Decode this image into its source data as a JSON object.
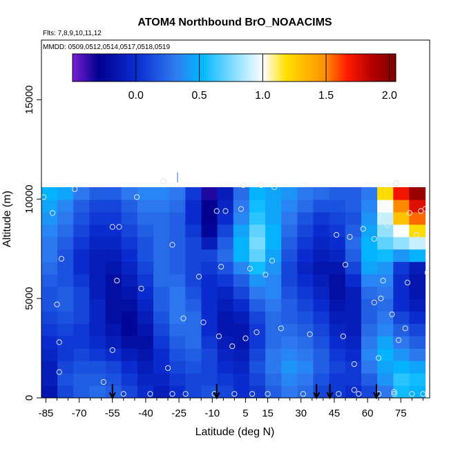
{
  "chart_data": {
    "type": "heatmap",
    "title": "ATOM4 Northbound BrO_NOAACIMS",
    "flights_label": "Flts: 7,8,9,10,11,12",
    "dates_label": "MMDD: 0509,0512,0514,0517,0518,0519",
    "xlabel": "Latitude (deg N)",
    "ylabel": "Altitude (m)",
    "xlim": [
      -87,
      88
    ],
    "ylim": [
      0,
      18000
    ],
    "x_ticks": [
      -85,
      -70,
      -55,
      -40,
      -25,
      -10,
      5,
      15,
      30,
      45,
      60,
      75
    ],
    "x_tick_labels": [
      "-85",
      "-70",
      "-55",
      "-40",
      "-25",
      "-10",
      "5",
      "15",
      "30",
      "45",
      "60",
      "75"
    ],
    "y_ticks": [
      0,
      5000,
      10000,
      15000
    ],
    "y_tick_labels": [
      "0",
      "5000",
      "10000",
      "15000"
    ],
    "colorbar": {
      "range": [
        -0.5,
        2.05
      ],
      "ticks": [
        0.0,
        0.5,
        1.0,
        1.5,
        2.0
      ],
      "tick_labels": [
        "0.0",
        "0.5",
        "1.0",
        "1.5",
        "2.0"
      ]
    },
    "colorscale": [
      "#7a1fd6",
      "#00008f",
      "#0a2ed0",
      "#2f7cf0",
      "#00b8ff",
      "#ffffff",
      "#ffe000",
      "#ff9000",
      "#ff1a00",
      "#b00000",
      "#800000"
    ],
    "cell_values_colorbar_units": [
      [
        -0.15,
        0.1,
        0.2,
        0.25,
        0.2,
        0.1,
        0.0,
        -0.1,
        0.0,
        0.1,
        0.15,
        0.1,
        0.0,
        0.05,
        0.2,
        0.3,
        0.25,
        0.1,
        0.05,
        0.0,
        0.1,
        0.3,
        0.55,
        0.5
      ],
      [
        -0.1,
        0.15,
        0.2,
        0.2,
        0.15,
        0.05,
        -0.05,
        -0.05,
        0.05,
        0.1,
        0.1,
        0.05,
        0.0,
        0.1,
        0.25,
        0.35,
        0.3,
        0.15,
        0.05,
        0.05,
        0.2,
        0.4,
        0.6,
        0.55
      ],
      [
        -0.1,
        0.1,
        0.15,
        0.15,
        0.1,
        0.0,
        -0.1,
        0.0,
        0.1,
        0.15,
        0.1,
        0.0,
        -0.05,
        0.15,
        0.3,
        0.4,
        0.35,
        0.2,
        0.1,
        0.05,
        0.3,
        0.45,
        0.5,
        0.45
      ],
      [
        -0.05,
        0.05,
        0.1,
        0.05,
        0.0,
        -0.1,
        -0.15,
        0.0,
        0.15,
        0.2,
        0.1,
        -0.05,
        -0.1,
        0.1,
        0.3,
        0.35,
        0.3,
        0.2,
        0.05,
        0.0,
        0.35,
        0.5,
        0.4,
        0.3
      ],
      [
        0.0,
        0.05,
        0.05,
        0.0,
        -0.1,
        -0.2,
        -0.2,
        0.05,
        0.2,
        0.25,
        0.05,
        -0.1,
        -0.15,
        0.05,
        0.25,
        0.3,
        0.25,
        0.15,
        0.0,
        -0.05,
        0.3,
        0.45,
        0.3,
        0.2
      ],
      [
        0.05,
        0.1,
        0.05,
        -0.05,
        -0.15,
        -0.25,
        -0.15,
        0.1,
        0.25,
        0.25,
        0.0,
        -0.15,
        -0.15,
        0.05,
        0.25,
        0.25,
        0.2,
        0.1,
        -0.05,
        -0.1,
        0.25,
        0.35,
        0.2,
        0.1
      ],
      [
        0.1,
        0.15,
        0.1,
        -0.05,
        -0.2,
        -0.25,
        -0.1,
        0.15,
        0.3,
        0.25,
        0.0,
        -0.15,
        -0.1,
        0.1,
        0.25,
        0.2,
        0.15,
        0.05,
        -0.1,
        -0.1,
        0.2,
        0.3,
        0.1,
        0.0
      ],
      [
        0.15,
        0.2,
        0.1,
        -0.05,
        -0.2,
        -0.2,
        -0.05,
        0.2,
        0.3,
        0.2,
        0.0,
        -0.1,
        0.0,
        0.2,
        0.3,
        0.2,
        0.1,
        0.0,
        -0.15,
        -0.1,
        0.2,
        0.25,
        0.0,
        -0.1
      ],
      [
        0.15,
        0.2,
        0.1,
        -0.1,
        -0.2,
        -0.15,
        0.0,
        0.2,
        0.3,
        0.15,
        0.0,
        -0.05,
        0.1,
        0.3,
        0.35,
        0.15,
        0.05,
        -0.05,
        -0.2,
        -0.1,
        0.25,
        0.3,
        0.0,
        -0.15
      ],
      [
        0.2,
        0.15,
        0.05,
        -0.1,
        -0.2,
        -0.1,
        0.05,
        0.25,
        0.25,
        0.1,
        0.0,
        0.05,
        0.2,
        0.4,
        0.35,
        0.1,
        0.0,
        -0.1,
        -0.2,
        0.0,
        0.35,
        0.35,
        0.0,
        -0.15
      ],
      [
        0.25,
        0.15,
        0.0,
        -0.1,
        -0.15,
        -0.05,
        0.1,
        0.25,
        0.2,
        0.1,
        0.05,
        0.15,
        0.35,
        0.55,
        0.4,
        0.1,
        -0.05,
        -0.15,
        -0.15,
        0.1,
        0.45,
        0.4,
        0.05,
        -0.1
      ],
      [
        0.3,
        0.15,
        0.0,
        -0.1,
        -0.1,
        0.0,
        0.15,
        0.25,
        0.2,
        0.1,
        0.1,
        0.25,
        0.5,
        0.7,
        0.45,
        0.15,
        0.0,
        -0.1,
        -0.05,
        0.2,
        0.5,
        0.55,
        0.4,
        0.5
      ],
      [
        0.3,
        0.2,
        0.05,
        -0.05,
        -0.05,
        0.05,
        0.15,
        0.25,
        0.2,
        0.1,
        -0.1,
        0.2,
        0.5,
        0.75,
        0.5,
        0.2,
        0.05,
        -0.05,
        0.0,
        0.25,
        0.5,
        0.7,
        0.8,
        0.9
      ],
      [
        0.35,
        0.25,
        0.1,
        0.0,
        0.0,
        0.1,
        0.2,
        0.25,
        0.2,
        0.05,
        -0.25,
        0.1,
        0.45,
        0.7,
        0.5,
        0.25,
        0.1,
        0.0,
        0.05,
        0.2,
        0.45,
        0.8,
        1.0,
        1.2
      ],
      [
        0.4,
        0.3,
        0.15,
        0.05,
        0.05,
        0.15,
        0.25,
        0.25,
        0.2,
        0.0,
        -0.3,
        0.0,
        0.35,
        0.6,
        0.45,
        0.3,
        0.15,
        0.05,
        0.1,
        0.15,
        0.4,
        0.9,
        1.3,
        1.55
      ],
      [
        0.45,
        0.35,
        0.2,
        0.1,
        0.1,
        0.2,
        0.3,
        0.3,
        0.25,
        0.0,
        -0.3,
        -0.05,
        0.3,
        0.55,
        0.45,
        0.35,
        0.25,
        0.15,
        0.15,
        0.2,
        0.35,
        1.0,
        1.5,
        1.75
      ],
      [
        0.5,
        0.45,
        0.3,
        0.2,
        0.2,
        0.3,
        0.35,
        0.35,
        0.3,
        0.05,
        -0.35,
        -0.1,
        0.25,
        0.5,
        0.45,
        0.4,
        0.3,
        0.25,
        0.2,
        0.2,
        0.3,
        1.2,
        1.7,
        1.95
      ]
    ],
    "cell_rows_bottom_to_top": "altitude bands 0-10600 m, latitude bins -87 to 86",
    "sample_points": [
      [
        -86,
        10100
      ],
      [
        -82,
        9300
      ],
      [
        -80,
        4700
      ],
      [
        -79,
        2800
      ],
      [
        -79,
        1300
      ],
      [
        -78,
        7000
      ],
      [
        -72,
        10500
      ],
      [
        -59,
        800
      ],
      [
        -55,
        8600
      ],
      [
        -55,
        2400
      ],
      [
        -52,
        8600
      ],
      [
        -53,
        5900
      ],
      [
        -50,
        200
      ],
      [
        -44,
        10100
      ],
      [
        -42,
        5500
      ],
      [
        -38,
        200
      ],
      [
        -32,
        10900
      ],
      [
        -30,
        1500
      ],
      [
        -28,
        7700
      ],
      [
        -28,
        200
      ],
      [
        -23,
        4000
      ],
      [
        -22,
        200
      ],
      [
        -16,
        6100
      ],
      [
        -14,
        3800
      ],
      [
        -9,
        200
      ],
      [
        -8,
        9400
      ],
      [
        -7,
        3100
      ],
      [
        -6,
        6600
      ],
      [
        -4,
        9400
      ],
      [
        -1,
        2600
      ],
      [
        0,
        200
      ],
      [
        3,
        9500
      ],
      [
        4,
        10700
      ],
      [
        5,
        3000
      ],
      [
        7,
        6500
      ],
      [
        8,
        200
      ],
      [
        10,
        3300
      ],
      [
        12,
        10700
      ],
      [
        14,
        6200
      ],
      [
        15,
        200
      ],
      [
        17,
        6900
      ],
      [
        18,
        10600
      ],
      [
        21,
        3500
      ],
      [
        31,
        200
      ],
      [
        34,
        3200
      ],
      [
        46,
        8200
      ],
      [
        47,
        200
      ],
      [
        49,
        3100
      ],
      [
        50,
        6700
      ],
      [
        52,
        8100
      ],
      [
        54,
        1700
      ],
      [
        54,
        400
      ],
      [
        56,
        200
      ],
      [
        58,
        8500
      ],
      [
        63,
        8000
      ],
      [
        63,
        4800
      ],
      [
        65,
        2000
      ],
      [
        65,
        200
      ],
      [
        66,
        5000
      ],
      [
        67,
        5900
      ],
      [
        69,
        8700
      ],
      [
        71,
        4200
      ],
      [
        72,
        200
      ],
      [
        72,
        300
      ],
      [
        73,
        10800
      ],
      [
        74,
        2900
      ],
      [
        77,
        3500
      ],
      [
        78,
        5800
      ],
      [
        79,
        9300
      ],
      [
        80,
        200
      ],
      [
        82,
        8200
      ],
      [
        84,
        9400
      ],
      [
        85,
        200
      ],
      [
        86,
        9500
      ],
      [
        87,
        6300
      ]
    ],
    "flight_markers_lat": [
      -55,
      -8,
      37,
      43,
      64
    ]
  }
}
